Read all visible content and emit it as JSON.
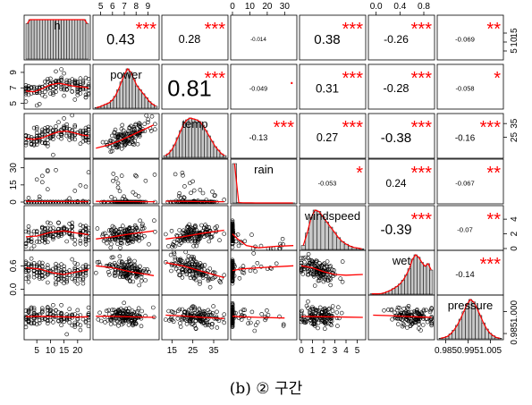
{
  "caption": "(b) ② 구간",
  "chart_data": {
    "type": "scatter",
    "subtype": "correlation-matrix",
    "variables": [
      "h",
      "power",
      "temp",
      "rain",
      "windspeed",
      "wet",
      "pressure"
    ],
    "variable_labels": [
      "h",
      "power",
      "temp",
      "rain",
      "windspeed",
      "wet",
      "pressure"
    ],
    "ranges": {
      "h": [
        1,
        24
      ],
      "power": [
        4.5,
        9.8
      ],
      "temp": [
        11,
        41
      ],
      "rain": [
        0,
        36
      ],
      "windspeed": [
        0,
        5.6
      ],
      "wet": [
        -0.1,
        0.95
      ],
      "pressure": [
        0.982,
        1.01
      ]
    },
    "ticks": {
      "h": [
        "5",
        "10",
        "15",
        "20"
      ],
      "power": [
        "5",
        "6",
        "7",
        "8",
        "9"
      ],
      "temp": [
        "15",
        "25",
        "35"
      ],
      "rain": [
        "0",
        "10",
        "20",
        "30"
      ],
      "windspeed": [
        "0",
        "1",
        "2",
        "3",
        "4",
        "5"
      ],
      "wet": [
        "0.0",
        "0.4",
        "0.8"
      ],
      "pressure": [
        "0.985",
        "0.995",
        "1.005"
      ]
    },
    "right_ticks": {
      "h": [
        "5",
        "10",
        "15"
      ],
      "power": [],
      "temp": [
        "25",
        "35"
      ],
      "rain": [],
      "windspeed": [
        "0",
        "2",
        "4"
      ],
      "wet": [],
      "pressure": [
        "0.985",
        "1.000"
      ]
    },
    "left_ticks": {
      "power": [
        "5",
        "7",
        "9"
      ],
      "rain": [
        "0",
        "15",
        "30"
      ],
      "wet": [
        "0.0",
        "0.6"
      ]
    },
    "right_tick_values": {
      "h": [
        5,
        10,
        15
      ],
      "temp": [
        25,
        35
      ],
      "windspeed": [
        0,
        2,
        4
      ],
      "pressure": [
        0.985,
        1.0
      ]
    },
    "left_tick_values": {
      "power": [
        5,
        7,
        9
      ],
      "rain": [
        0,
        15,
        30
      ],
      "wet": [
        0.0,
        0.6
      ]
    },
    "correlations": [
      {
        "row": 0,
        "col": 1,
        "value": "0.43",
        "stars": "***"
      },
      {
        "row": 0,
        "col": 2,
        "value": "0.28",
        "stars": "***"
      },
      {
        "row": 0,
        "col": 3,
        "value": "-0.014",
        "stars": ""
      },
      {
        "row": 0,
        "col": 4,
        "value": "0.38",
        "stars": "***"
      },
      {
        "row": 0,
        "col": 5,
        "value": "-0.26",
        "stars": "***"
      },
      {
        "row": 0,
        "col": 6,
        "value": "-0.069",
        "stars": "**"
      },
      {
        "row": 1,
        "col": 2,
        "value": "0.81",
        "stars": "***"
      },
      {
        "row": 1,
        "col": 3,
        "value": "-0.049",
        "stars": "."
      },
      {
        "row": 1,
        "col": 4,
        "value": "0.31",
        "stars": "***"
      },
      {
        "row": 1,
        "col": 5,
        "value": "-0.28",
        "stars": "***"
      },
      {
        "row": 1,
        "col": 6,
        "value": "-0.058",
        "stars": "*"
      },
      {
        "row": 2,
        "col": 3,
        "value": "-0.13",
        "stars": "***"
      },
      {
        "row": 2,
        "col": 4,
        "value": "0.27",
        "stars": "***"
      },
      {
        "row": 2,
        "col": 5,
        "value": "-0.38",
        "stars": "***"
      },
      {
        "row": 2,
        "col": 6,
        "value": "-0.16",
        "stars": "***"
      },
      {
        "row": 3,
        "col": 4,
        "value": "-0.053",
        "stars": "*"
      },
      {
        "row": 3,
        "col": 5,
        "value": "0.24",
        "stars": "***"
      },
      {
        "row": 3,
        "col": 6,
        "value": "-0.067",
        "stars": "**"
      },
      {
        "row": 4,
        "col": 5,
        "value": "-0.39",
        "stars": "***"
      },
      {
        "row": 4,
        "col": 6,
        "value": "-0.07",
        "stars": "**"
      },
      {
        "row": 5,
        "col": 6,
        "value": "-0.14",
        "stars": "***"
      }
    ],
    "histograms": {
      "h": [
        9,
        10,
        10,
        10,
        10,
        10,
        10,
        10,
        10,
        10,
        10,
        10,
        10,
        10,
        10,
        10,
        10,
        10,
        10,
        10,
        10,
        10,
        9
      ],
      "power": [
        1,
        2,
        4,
        6,
        8,
        12,
        18,
        28,
        40,
        52,
        60,
        55,
        44,
        34,
        28,
        22,
        16,
        10,
        6,
        3
      ],
      "temp": [
        2,
        4,
        8,
        14,
        22,
        30,
        38,
        42,
        44,
        43,
        42,
        40,
        36,
        30,
        24,
        18,
        12,
        8,
        4,
        2
      ],
      "rain": [
        100,
        1,
        0.5,
        0.3,
        0.2,
        0.1,
        0.1,
        0,
        0,
        0,
        0,
        0,
        0,
        0,
        0.05
      ],
      "windspeed": [
        6,
        25,
        48,
        60,
        58,
        50,
        42,
        34,
        26,
        18,
        12,
        8,
        5,
        3,
        2,
        1
      ],
      "wet": [
        0.5,
        0.5,
        0.5,
        1,
        2,
        4,
        6,
        9,
        12,
        16,
        22,
        30,
        40,
        55,
        62,
        58,
        50,
        44,
        48,
        38
      ],
      "pressure": [
        1,
        2,
        4,
        8,
        14,
        22,
        32,
        44,
        56,
        64,
        60,
        50,
        38,
        26,
        16,
        9,
        5,
        2,
        1
      ]
    },
    "smoothers": {
      "1,0": [
        [
          1,
          6.6
        ],
        [
          4,
          6.5
        ],
        [
          7,
          6.9
        ],
        [
          10,
          7.4
        ],
        [
          13,
          7.6
        ],
        [
          16,
          7.4
        ],
        [
          19,
          7.2
        ],
        [
          22,
          7.1
        ],
        [
          24,
          7.0
        ]
      ],
      "2,0": [
        [
          1,
          24
        ],
        [
          4,
          23.5
        ],
        [
          7,
          24.5
        ],
        [
          10,
          27
        ],
        [
          13,
          29
        ],
        [
          16,
          29.5
        ],
        [
          19,
          28
        ],
        [
          22,
          26.5
        ],
        [
          24,
          26
        ]
      ],
      "2,1": [
        [
          4.6,
          17
        ],
        [
          5.5,
          19
        ],
        [
          6.5,
          22
        ],
        [
          7.5,
          26
        ],
        [
          8.5,
          30
        ],
        [
          9.5,
          34
        ]
      ],
      "3,0": [
        [
          1,
          0.6
        ],
        [
          6,
          0.5
        ],
        [
          12,
          0.5
        ],
        [
          18,
          0.5
        ],
        [
          24,
          0.4
        ]
      ],
      "3,1": [
        [
          4.6,
          0.6
        ],
        [
          6,
          0.5
        ],
        [
          8,
          0.4
        ],
        [
          9.6,
          0.3
        ]
      ],
      "3,2": [
        [
          12,
          0.8
        ],
        [
          20,
          0.6
        ],
        [
          30,
          0.4
        ],
        [
          40,
          0.3
        ]
      ],
      "4,0": [
        [
          1,
          1.6
        ],
        [
          5,
          1.7
        ],
        [
          10,
          2.2
        ],
        [
          15,
          2.4
        ],
        [
          20,
          2.1
        ],
        [
          24,
          1.9
        ]
      ],
      "4,1": [
        [
          4.6,
          1.3
        ],
        [
          6,
          1.6
        ],
        [
          7.5,
          2.0
        ],
        [
          9.5,
          2.4
        ]
      ],
      "4,2": [
        [
          12,
          1.3
        ],
        [
          20,
          1.6
        ],
        [
          30,
          2.1
        ],
        [
          40,
          2.5
        ]
      ],
      "4,3": [
        [
          0,
          2.0
        ],
        [
          3,
          1.3
        ],
        [
          8,
          0.4
        ],
        [
          15,
          0.1
        ],
        [
          25,
          0.3
        ],
        [
          35,
          0.4
        ]
      ],
      "5,0": [
        [
          1,
          0.55
        ],
        [
          6,
          0.52
        ],
        [
          11,
          0.42
        ],
        [
          15,
          0.38
        ],
        [
          20,
          0.45
        ],
        [
          24,
          0.5
        ]
      ],
      "5,1": [
        [
          4.6,
          0.6
        ],
        [
          6,
          0.55
        ],
        [
          7.5,
          0.45
        ],
        [
          9.5,
          0.35
        ]
      ],
      "5,2": [
        [
          12,
          0.68
        ],
        [
          20,
          0.6
        ],
        [
          30,
          0.45
        ],
        [
          40,
          0.3
        ]
      ],
      "5,3": [
        [
          0,
          0.48
        ],
        [
          5,
          0.52
        ],
        [
          15,
          0.55
        ],
        [
          35,
          0.6
        ]
      ],
      "5,4": [
        [
          0,
          0.6
        ],
        [
          1,
          0.55
        ],
        [
          2,
          0.45
        ],
        [
          3,
          0.38
        ],
        [
          4,
          0.36
        ],
        [
          5.5,
          0.38
        ]
      ],
      "6,0": [
        [
          1,
          0.9965
        ],
        [
          6,
          0.9968
        ],
        [
          12,
          0.9965
        ],
        [
          18,
          0.9962
        ],
        [
          24,
          0.9964
        ]
      ],
      "6,1": [
        [
          4.6,
          0.9968
        ],
        [
          6,
          0.9967
        ],
        [
          8,
          0.9963
        ],
        [
          9.6,
          0.996
        ]
      ],
      "6,2": [
        [
          12,
          0.9975
        ],
        [
          20,
          0.997
        ],
        [
          30,
          0.996
        ],
        [
          40,
          0.9952
        ]
      ],
      "6,3": [
        [
          0,
          0.9968
        ],
        [
          5,
          0.9964
        ],
        [
          15,
          0.996
        ],
        [
          30,
          0.9956
        ]
      ],
      "6,4": [
        [
          0,
          0.9966
        ],
        [
          2,
          0.9965
        ],
        [
          4,
          0.9962
        ],
        [
          5.5,
          0.996
        ]
      ],
      "6,5": [
        [
          -0.05,
          0.9975
        ],
        [
          0.2,
          0.9972
        ],
        [
          0.5,
          0.9966
        ],
        [
          0.8,
          0.9962
        ],
        [
          0.93,
          0.996
        ]
      ]
    },
    "colors": {
      "stars": "#ff0000",
      "smoother": "#ff0000",
      "points": "#000000",
      "hist_fill": "#c8c8c8",
      "background": "#ffffff"
    }
  }
}
